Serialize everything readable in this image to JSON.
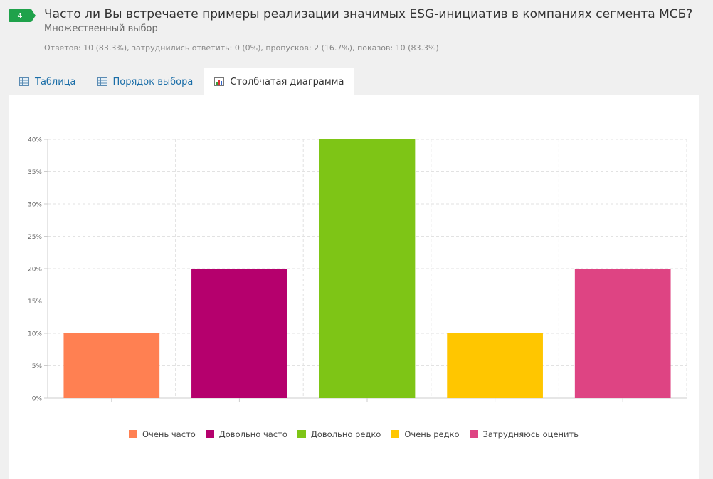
{
  "question": {
    "number": "4",
    "title": "Часто ли Вы встречаете примеры реализации значимых ESG-инициатив в компаниях сегмента МСБ?",
    "subtitle": "Множественный выбор",
    "stats_prefix": "Ответов: 10 (83.3%), затруднились ответить: 0 (0%), пропусков: 2 (16.7%), показов: ",
    "stats_views": "10 (83.3%)"
  },
  "tabs": [
    {
      "label": "Таблица",
      "icon": "table-icon",
      "active": false
    },
    {
      "label": "Порядок выбора",
      "icon": "table-icon",
      "active": false
    },
    {
      "label": "Столбчатая диаграмма",
      "icon": "bar-chart-icon",
      "active": true
    }
  ],
  "colors": {
    "badge": "#1fa24b",
    "link": "#1b6ea8"
  },
  "chart_data": {
    "type": "bar",
    "categories": [
      "Очень часто",
      "Довольно часто",
      "Довольно редко",
      "Очень редко",
      "Затрудняюсь оценить"
    ],
    "values": [
      10,
      20,
      40,
      10,
      20
    ],
    "colors": [
      "#ff8052",
      "#b5006d",
      "#7ec516",
      "#ffc600",
      "#de4483"
    ],
    "ylim": [
      0,
      40
    ],
    "yticks": [
      "0%",
      "5%",
      "10%",
      "15%",
      "20%",
      "25%",
      "30%",
      "35%",
      "40%"
    ],
    "grid": true,
    "legend_position": "bottom"
  }
}
